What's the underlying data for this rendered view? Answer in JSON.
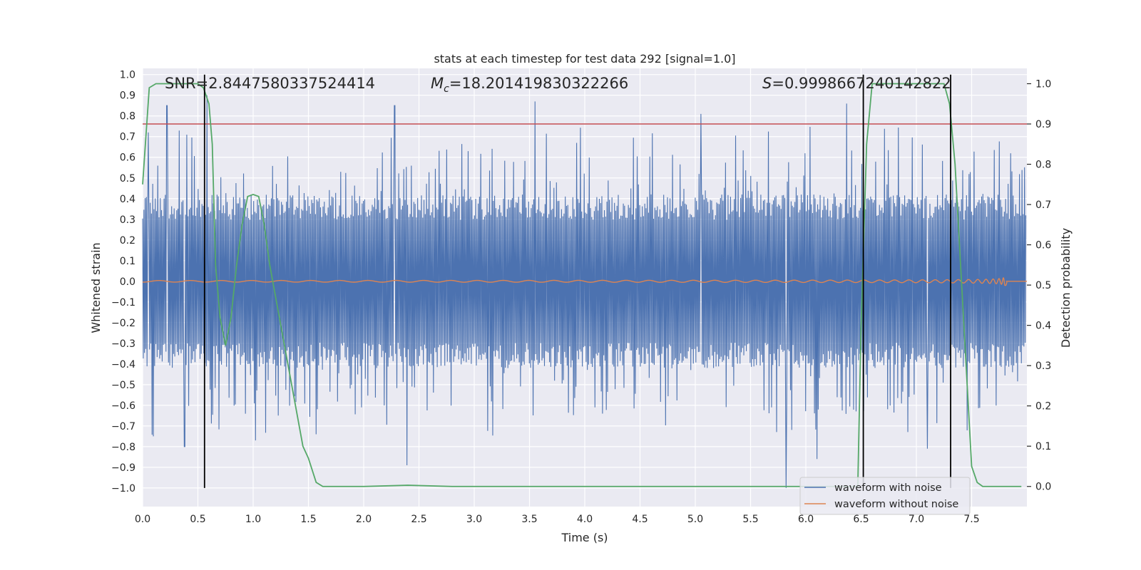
{
  "chart_data": {
    "type": "line",
    "title": "stats at each timestep for test data 292 [signal=1.0]",
    "xlabel": "Time (s)",
    "ylabel": "Whitened strain",
    "ylabel_right": "Detection probability",
    "xlim": [
      0.0,
      8.0
    ],
    "ylim": [
      -1.09,
      1.03
    ],
    "ylim_right": [
      -0.05,
      1.038
    ],
    "x_ticks": [
      0.0,
      0.5,
      1.0,
      1.5,
      2.0,
      2.5,
      3.0,
      3.5,
      4.0,
      4.5,
      5.0,
      5.5,
      6.0,
      6.5,
      7.0,
      7.5
    ],
    "x_tick_labels": [
      "0.0",
      "0.5",
      "1.0",
      "1.5",
      "2.0",
      "2.5",
      "3.0",
      "3.5",
      "4.0",
      "4.5",
      "5.0",
      "5.5",
      "6.0",
      "6.5",
      "7.0",
      "7.5"
    ],
    "y_ticks": [
      -1.0,
      -0.9,
      -0.8,
      -0.7,
      -0.6,
      -0.5,
      -0.4,
      -0.3,
      -0.2,
      -0.1,
      0.0,
      0.1,
      0.2,
      0.3,
      0.4,
      0.5,
      0.6,
      0.7,
      0.8,
      0.9,
      1.0
    ],
    "y_tick_labels": [
      "−1.0",
      "−0.9",
      "−0.8",
      "−0.7",
      "−0.6",
      "−0.5",
      "−0.4",
      "−0.3",
      "−0.2",
      "−0.1",
      "0.0",
      "0.1",
      "0.2",
      "0.3",
      "0.4",
      "0.5",
      "0.6",
      "0.7",
      "0.8",
      "0.9",
      "1.0"
    ],
    "y_right_ticks": [
      0.0,
      0.1,
      0.2,
      0.3,
      0.4,
      0.5,
      0.6,
      0.7,
      0.8,
      0.9,
      1.0
    ],
    "y_right_tick_labels": [
      "0.0",
      "0.1",
      "0.2",
      "0.3",
      "0.4",
      "0.5",
      "0.6",
      "0.7",
      "0.8",
      "0.9",
      "1.0"
    ],
    "grid": true,
    "legend_position": "bottom-right",
    "annotations": {
      "snr": "SNR=2.8447580337524414",
      "mc_symbol": "M",
      "mc_subscript": "c",
      "mc_value": "=18.201419830322266",
      "s_symbol": "S",
      "s_value": "=0.9998667240142822"
    },
    "series": [
      {
        "name": "waveform with noise",
        "color": "#4c72b0",
        "axis": "left",
        "x_range": [
          0.0,
          7.99
        ],
        "core_envelope": 0.35,
        "spike_max": 0.9,
        "spike_min": -1.0,
        "sample_peaks": [
          [
            0.05,
            0.72
          ],
          [
            0.22,
            0.85
          ],
          [
            0.58,
            0.9
          ],
          [
            2.28,
            0.85
          ],
          [
            3.55,
            0.87
          ],
          [
            5.05,
            0.81
          ],
          [
            6.37,
            0.86
          ],
          [
            0.38,
            -0.8
          ],
          [
            1.02,
            -0.77
          ],
          [
            1.57,
            -0.74
          ],
          [
            2.39,
            -0.89
          ],
          [
            5.82,
            -1.0
          ],
          [
            6.1,
            -0.86
          ],
          [
            7.1,
            -0.81
          ]
        ]
      },
      {
        "name": "waveform without noise",
        "color": "#dd8452",
        "axis": "left",
        "x_range": [
          0.0,
          7.82
        ],
        "merger_time": 7.81,
        "peak_amplitude": 0.18,
        "amplitude_at_5s": 0.005
      },
      {
        "name": "detection probability",
        "color": "#55a868",
        "axis": "right",
        "x": [
          0.0,
          0.06,
          0.12,
          0.2,
          0.35,
          0.5,
          0.55,
          0.6,
          0.63,
          0.66,
          0.7,
          0.75,
          0.8,
          0.85,
          0.9,
          0.95,
          1.0,
          1.05,
          1.1,
          1.15,
          1.25,
          1.35,
          1.45,
          1.5,
          1.57,
          1.63,
          1.7,
          2.0,
          2.4,
          2.8,
          3.0,
          4.0,
          5.0,
          6.0,
          6.3,
          6.47,
          6.5,
          6.55,
          6.6,
          6.65,
          7.0,
          7.25,
          7.3,
          7.35,
          7.45,
          7.5,
          7.55,
          7.6,
          7.7,
          7.95
        ],
        "values": [
          0.75,
          0.99,
          1.0,
          1.0,
          1.0,
          1.0,
          0.99,
          0.95,
          0.85,
          0.55,
          0.42,
          0.35,
          0.42,
          0.55,
          0.65,
          0.72,
          0.725,
          0.72,
          0.65,
          0.55,
          0.4,
          0.25,
          0.1,
          0.07,
          0.01,
          0.0,
          0.0,
          0.0,
          0.003,
          0.0,
          0.0,
          0.0,
          0.0,
          0.0,
          0.0,
          0.0,
          0.4,
          0.85,
          1.0,
          1.0,
          1.0,
          1.0,
          0.95,
          0.8,
          0.3,
          0.05,
          0.01,
          0.0,
          0.0,
          0.0
        ]
      }
    ],
    "threshold": {
      "value": 0.9,
      "axis": "right",
      "color": "#c44e52"
    },
    "vertical_markers": {
      "x": [
        0.56,
        6.52,
        7.31
      ],
      "color": "#000000",
      "span": [
        -1.0,
        1.0
      ]
    }
  }
}
